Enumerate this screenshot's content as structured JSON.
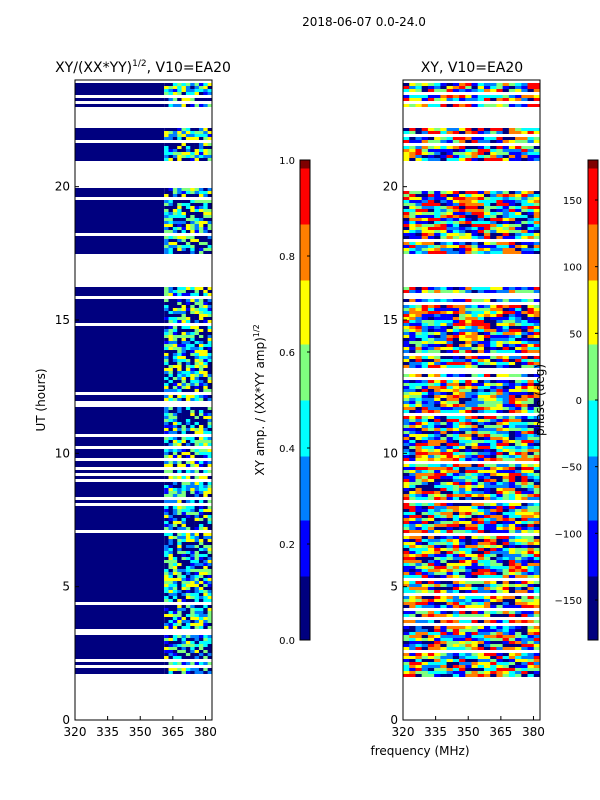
{
  "figure_title": "2018-06-07 0.0-24.0",
  "colormap": [
    "#00007f",
    "#0000ff",
    "#007fff",
    "#00ffff",
    "#7fff7f",
    "#ffff00",
    "#ff7f00",
    "#ff0000",
    "#7f0000"
  ],
  "chart_data": [
    {
      "type": "heatmap",
      "title_main": "XY/(XX*YY)",
      "title_sup": "1/2",
      "title_suffix": ", V10=EA20",
      "xlabel": "",
      "ylabel": "UT (hours)",
      "x_ticks": [
        320,
        335,
        350,
        365,
        380
      ],
      "y_ticks": [
        0,
        5,
        10,
        15,
        20
      ],
      "xlim": [
        320,
        383
      ],
      "ylim": [
        0,
        24
      ],
      "data_extent_hours": [
        1.6,
        24
      ],
      "active_band_mhz": [
        361,
        383
      ],
      "colorbar": {
        "label": "XY amp. / (XX*YY amp)",
        "label_sup": "1/2",
        "ticks": [
          "0.0",
          "0.2",
          "0.4",
          "0.6",
          "0.8",
          "1.0"
        ],
        "range": [
          0,
          1
        ]
      }
    },
    {
      "type": "heatmap",
      "title_main": "XY, V10=EA20",
      "xlabel": "frequency (MHz)",
      "ylabel": "",
      "x_ticks": [
        320,
        335,
        350,
        365,
        380
      ],
      "y_ticks": [
        0,
        5,
        10,
        15,
        20
      ],
      "xlim": [
        320,
        383
      ],
      "ylim": [
        0,
        24
      ],
      "data_extent_hours": [
        1.6,
        24
      ],
      "colorbar": {
        "label": "phase (deg)",
        "ticks": [
          "−150",
          "−100",
          "−50",
          "0",
          "50",
          "100",
          "150"
        ],
        "tick_values": [
          -150,
          -100,
          -50,
          0,
          50,
          100,
          150
        ],
        "range": [
          -180,
          180
        ]
      }
    }
  ]
}
